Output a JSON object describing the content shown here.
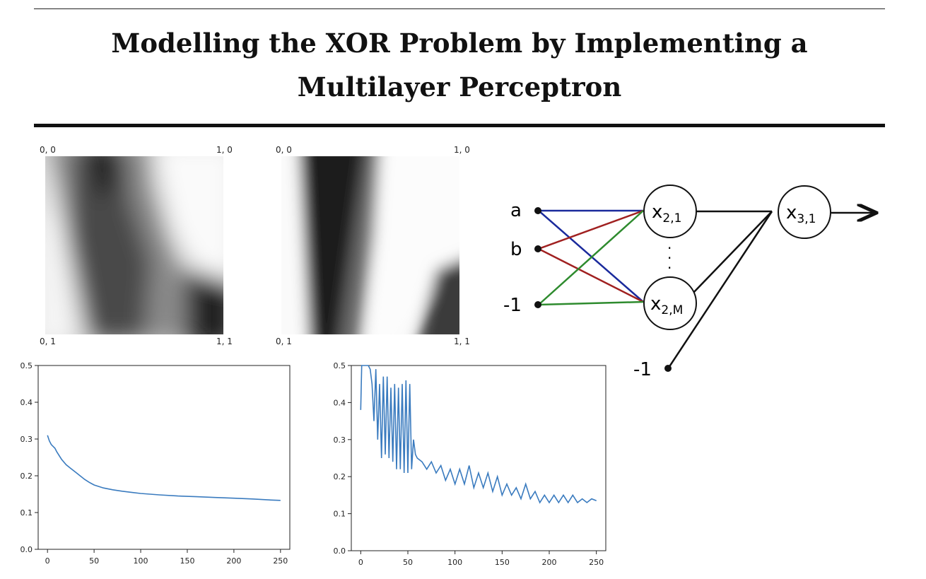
{
  "title": {
    "line1": "Modelling the XOR Problem by Implementing a",
    "line2": "Multilayer Perceptron"
  },
  "heatmaps": [
    {
      "corners": {
        "top_left": "0, 0",
        "top_right": "1, 0",
        "bottom_left": "0, 1",
        "bottom_right": "1, 1"
      }
    },
    {
      "corners": {
        "top_left": "0, 0",
        "top_right": "1, 0",
        "bottom_left": "0, 1",
        "bottom_right": "1, 1"
      }
    }
  ],
  "diagram": {
    "inputs": [
      "a",
      "b",
      "-1"
    ],
    "hidden_first": "x",
    "hidden_first_sub": "2,1",
    "hidden_last": "x",
    "hidden_last_sub": "2,M",
    "output": "x",
    "output_sub": "3,1",
    "bias_output": "-1",
    "edge_colors": {
      "a": "#1a2a9c",
      "b": "#a02020",
      "bias": "#2e8b2e"
    }
  },
  "chart_data": [
    {
      "type": "line",
      "x": [
        0,
        2,
        4,
        6,
        8,
        10,
        15,
        20,
        25,
        30,
        35,
        40,
        45,
        50,
        60,
        70,
        80,
        90,
        100,
        120,
        140,
        160,
        180,
        200,
        220,
        240,
        250
      ],
      "y": [
        0.31,
        0.295,
        0.285,
        0.28,
        0.275,
        0.265,
        0.245,
        0.23,
        0.22,
        0.21,
        0.2,
        0.19,
        0.182,
        0.175,
        0.167,
        0.162,
        0.158,
        0.155,
        0.152,
        0.148,
        0.145,
        0.143,
        0.141,
        0.139,
        0.137,
        0.134,
        0.133
      ],
      "xlim": [
        -10,
        260
      ],
      "ylim": [
        0,
        0.5
      ],
      "xticks": [
        0,
        50,
        100,
        150,
        200,
        250
      ],
      "yticks": [
        0.0,
        0.1,
        0.2,
        0.3,
        0.4,
        0.5
      ],
      "color": "#3a7bbf"
    },
    {
      "type": "line",
      "x": [
        0,
        1,
        2,
        4,
        6,
        8,
        10,
        12,
        14,
        16,
        18,
        20,
        22,
        24,
        26,
        28,
        30,
        32,
        34,
        36,
        38,
        40,
        42,
        44,
        46,
        48,
        50,
        52,
        54,
        56,
        58,
        60,
        65,
        70,
        75,
        80,
        85,
        90,
        95,
        100,
        105,
        110,
        115,
        120,
        125,
        130,
        135,
        140,
        145,
        150,
        155,
        160,
        165,
        170,
        175,
        180,
        185,
        190,
        195,
        200,
        205,
        210,
        215,
        220,
        225,
        230,
        235,
        240,
        245,
        250
      ],
      "y": [
        0.38,
        0.5,
        0.5,
        0.5,
        0.5,
        0.5,
        0.49,
        0.45,
        0.35,
        0.49,
        0.3,
        0.45,
        0.25,
        0.47,
        0.26,
        0.47,
        0.25,
        0.44,
        0.24,
        0.45,
        0.22,
        0.44,
        0.22,
        0.45,
        0.21,
        0.46,
        0.21,
        0.45,
        0.22,
        0.3,
        0.26,
        0.25,
        0.24,
        0.22,
        0.24,
        0.21,
        0.23,
        0.19,
        0.22,
        0.18,
        0.22,
        0.18,
        0.23,
        0.17,
        0.21,
        0.17,
        0.21,
        0.16,
        0.2,
        0.15,
        0.18,
        0.15,
        0.17,
        0.14,
        0.18,
        0.14,
        0.16,
        0.13,
        0.15,
        0.13,
        0.15,
        0.13,
        0.15,
        0.13,
        0.15,
        0.13,
        0.14,
        0.13,
        0.14,
        0.135
      ],
      "xlim": [
        -10,
        260
      ],
      "ylim": [
        0,
        0.5
      ],
      "xticks": [
        0,
        50,
        100,
        150,
        200,
        250
      ],
      "yticks": [
        0.0,
        0.1,
        0.2,
        0.3,
        0.4,
        0.5
      ],
      "color": "#3a7bbf"
    }
  ]
}
